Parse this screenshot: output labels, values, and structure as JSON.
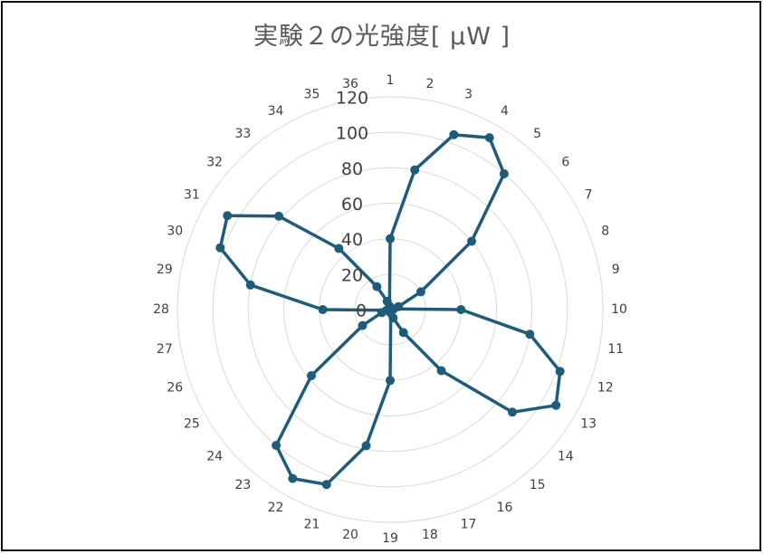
{
  "chart_data": {
    "type": "radar",
    "title": "実験２の光強度[ μW ]",
    "categories": [
      "1",
      "2",
      "3",
      "4",
      "5",
      "6",
      "7",
      "8",
      "9",
      "10",
      "11",
      "12",
      "13",
      "14",
      "15",
      "16",
      "17",
      "18",
      "19",
      "20",
      "21",
      "22",
      "23",
      "24",
      "25",
      "26",
      "27",
      "28",
      "29",
      "30",
      "31",
      "32",
      "33",
      "34",
      "35",
      "36"
    ],
    "radial_ticks": [
      "0",
      "20",
      "40",
      "60",
      "80",
      "100",
      "120"
    ],
    "rlim": [
      0,
      120
    ],
    "series": [
      {
        "name": "光強度",
        "color": "#1f5c7a",
        "values": [
          40,
          80,
          105,
          112,
          100,
          60,
          20,
          5,
          2,
          40,
          80,
          102,
          108,
          90,
          45,
          15,
          5,
          2,
          40,
          78,
          105,
          110,
          100,
          58,
          18,
          5,
          2,
          38,
          80,
          102,
          106,
          82,
          45,
          15,
          5,
          2
        ]
      }
    ]
  }
}
